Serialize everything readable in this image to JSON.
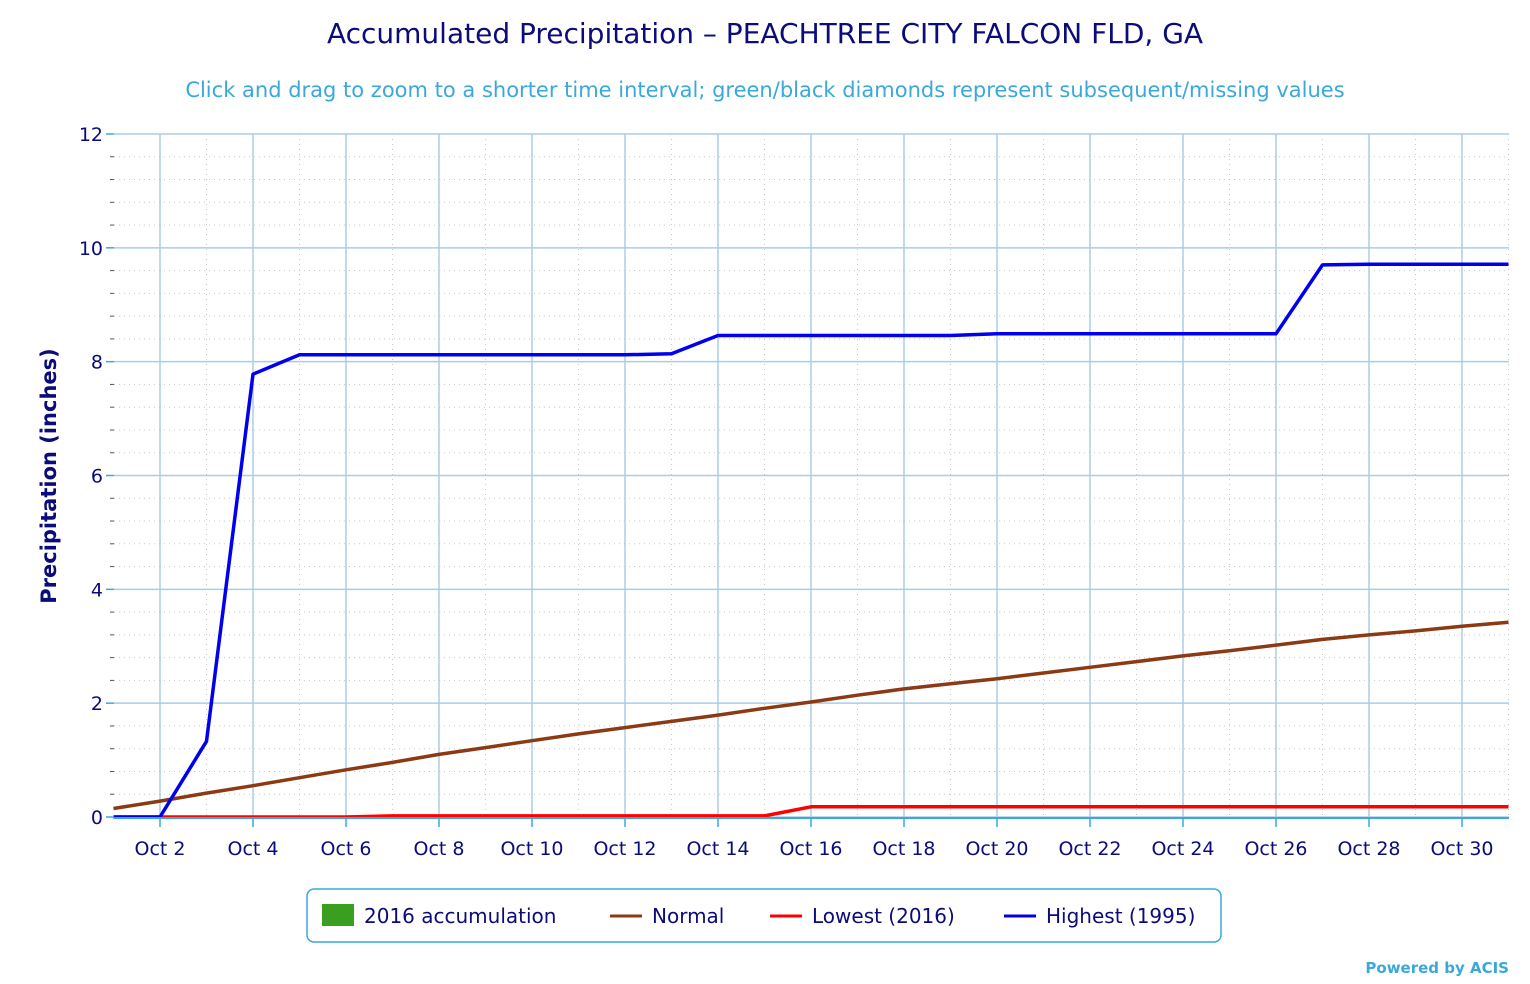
{
  "chart_data": {
    "type": "line",
    "title": "Accumulated Precipitation – PEACHTREE CITY FALCON FLD, GA",
    "subtitle": "Click and drag to zoom to a shorter time interval; green/black diamonds represent subsequent/missing values",
    "ylabel": "Precipitation (inches)",
    "xlabel": "",
    "xlim": [
      1,
      31
    ],
    "ylim": [
      0,
      12
    ],
    "x_ticks": [
      2,
      4,
      6,
      8,
      10,
      12,
      14,
      16,
      18,
      20,
      22,
      24,
      26,
      28,
      30
    ],
    "x_tick_labels": [
      "Oct 2",
      "Oct 4",
      "Oct 6",
      "Oct 8",
      "Oct 10",
      "Oct 12",
      "Oct 14",
      "Oct 16",
      "Oct 18",
      "Oct 20",
      "Oct 22",
      "Oct 24",
      "Oct 26",
      "Oct 28",
      "Oct 30"
    ],
    "y_ticks": [
      0,
      2,
      4,
      6,
      8,
      10,
      12
    ],
    "y_tick_labels": [
      "0",
      "2",
      "4",
      "6",
      "8",
      "10",
      "12"
    ],
    "grid": true,
    "legend_position": "bottom-center",
    "series": [
      {
        "name": "2016 accumulation",
        "color": "#3a9e1f",
        "kind": "area",
        "x": [],
        "values": []
      },
      {
        "name": "Normal",
        "color": "#8b3a14",
        "kind": "line",
        "x": [
          1,
          2,
          3,
          4,
          5,
          6,
          7,
          8,
          9,
          10,
          11,
          12,
          13,
          14,
          15,
          16,
          17,
          18,
          19,
          20,
          21,
          22,
          23,
          24,
          25,
          26,
          27,
          28,
          29,
          30,
          31
        ],
        "values": [
          0.15,
          0.28,
          0.42,
          0.55,
          0.69,
          0.83,
          0.96,
          1.1,
          1.22,
          1.34,
          1.46,
          1.57,
          1.68,
          1.79,
          1.91,
          2.02,
          2.14,
          2.25,
          2.34,
          2.43,
          2.53,
          2.63,
          2.73,
          2.83,
          2.92,
          3.02,
          3.12,
          3.2,
          3.27,
          3.35,
          3.42
        ]
      },
      {
        "name": "Lowest (2016)",
        "color": "#ff0000",
        "kind": "line",
        "x": [
          1,
          2,
          3,
          4,
          5,
          6,
          7,
          8,
          9,
          10,
          11,
          12,
          13,
          14,
          15,
          16,
          17,
          18,
          19,
          20,
          21,
          22,
          23,
          24,
          25,
          26,
          27,
          28,
          29,
          30,
          31
        ],
        "values": [
          0,
          0,
          0,
          0,
          0,
          0,
          0.02,
          0.02,
          0.02,
          0.02,
          0.02,
          0.02,
          0.02,
          0.02,
          0.02,
          0.18,
          0.18,
          0.18,
          0.18,
          0.18,
          0.18,
          0.18,
          0.18,
          0.18,
          0.18,
          0.18,
          0.18,
          0.18,
          0.18,
          0.18,
          0.18
        ]
      },
      {
        "name": "Highest (1995)",
        "color": "#0000ee",
        "kind": "line",
        "x": [
          1,
          2,
          3,
          4,
          5,
          6,
          7,
          8,
          9,
          10,
          11,
          12,
          13,
          14,
          15,
          16,
          17,
          18,
          19,
          20,
          21,
          22,
          23,
          24,
          25,
          26,
          27,
          28,
          29,
          30,
          31
        ],
        "values": [
          0,
          0,
          1.33,
          7.78,
          8.12,
          8.12,
          8.12,
          8.12,
          8.12,
          8.12,
          8.12,
          8.12,
          8.14,
          8.46,
          8.46,
          8.46,
          8.46,
          8.46,
          8.46,
          8.49,
          8.49,
          8.49,
          8.49,
          8.49,
          8.49,
          8.49,
          9.7,
          9.71,
          9.71,
          9.71,
          9.71
        ]
      }
    ]
  },
  "legend": {
    "items": [
      {
        "label": "2016 accumulation",
        "swatch": "box",
        "color": "#3a9e1f"
      },
      {
        "label": "Normal",
        "swatch": "line",
        "color": "#8b3a14"
      },
      {
        "label": "Lowest (2016)",
        "swatch": "line",
        "color": "#ff0000"
      },
      {
        "label": "Highest (1995)",
        "swatch": "line",
        "color": "#0000ee"
      }
    ]
  },
  "credit": "Powered by ACIS"
}
